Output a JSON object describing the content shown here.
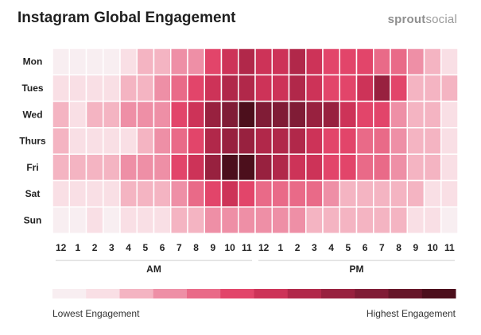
{
  "header": {
    "title": "Instagram Global Engagement",
    "logo_bold": "sprout",
    "logo_light": "social"
  },
  "chart_data": {
    "type": "heatmap",
    "title": "Instagram Global Engagement",
    "rows": [
      "Mon",
      "Tues",
      "Wed",
      "Thurs",
      "Fri",
      "Sat",
      "Sun"
    ],
    "columns": [
      "12",
      "1",
      "2",
      "3",
      "4",
      "5",
      "6",
      "7",
      "8",
      "9",
      "10",
      "11",
      "12",
      "1",
      "2",
      "3",
      "4",
      "5",
      "6",
      "7",
      "8",
      "9",
      "10",
      "11"
    ],
    "period_labels": [
      "AM",
      "PM"
    ],
    "scale_min_label": "Lowest Engagement",
    "scale_max_label": "Highest Engagement",
    "scale_levels": 12,
    "palette": [
      "#f8eef1",
      "#f9dfe5",
      "#f4b4c2",
      "#ee8fa6",
      "#e96a88",
      "#e2456a",
      "#cd3358",
      "#b1284a",
      "#98213f",
      "#801c36",
      "#661629",
      "#4c0f1c"
    ],
    "values": [
      [
        0,
        0,
        0,
        0,
        1,
        2,
        2,
        3,
        3,
        5,
        6,
        7,
        6,
        6,
        7,
        6,
        5,
        5,
        5,
        4,
        4,
        3,
        2,
        1
      ],
      [
        1,
        1,
        1,
        1,
        2,
        2,
        3,
        4,
        5,
        6,
        7,
        7,
        6,
        6,
        7,
        6,
        5,
        5,
        6,
        8,
        5,
        2,
        2,
        2
      ],
      [
        2,
        1,
        2,
        2,
        3,
        3,
        3,
        5,
        6,
        8,
        9,
        11,
        9,
        9,
        9,
        8,
        8,
        6,
        5,
        5,
        3,
        2,
        2,
        1
      ],
      [
        2,
        1,
        1,
        1,
        1,
        2,
        3,
        4,
        5,
        7,
        8,
        8,
        7,
        7,
        7,
        6,
        5,
        5,
        4,
        4,
        3,
        2,
        2,
        1
      ],
      [
        2,
        2,
        2,
        2,
        3,
        3,
        3,
        5,
        6,
        8,
        11,
        11,
        8,
        7,
        6,
        6,
        5,
        5,
        4,
        4,
        3,
        2,
        2,
        1
      ],
      [
        1,
        1,
        1,
        1,
        2,
        2,
        2,
        3,
        4,
        5,
        6,
        5,
        4,
        4,
        4,
        4,
        3,
        2,
        2,
        2,
        2,
        2,
        1,
        1
      ],
      [
        0,
        0,
        1,
        0,
        1,
        1,
        1,
        2,
        2,
        3,
        3,
        3,
        3,
        3,
        3,
        2,
        2,
        2,
        2,
        2,
        2,
        1,
        1,
        0
      ]
    ]
  }
}
